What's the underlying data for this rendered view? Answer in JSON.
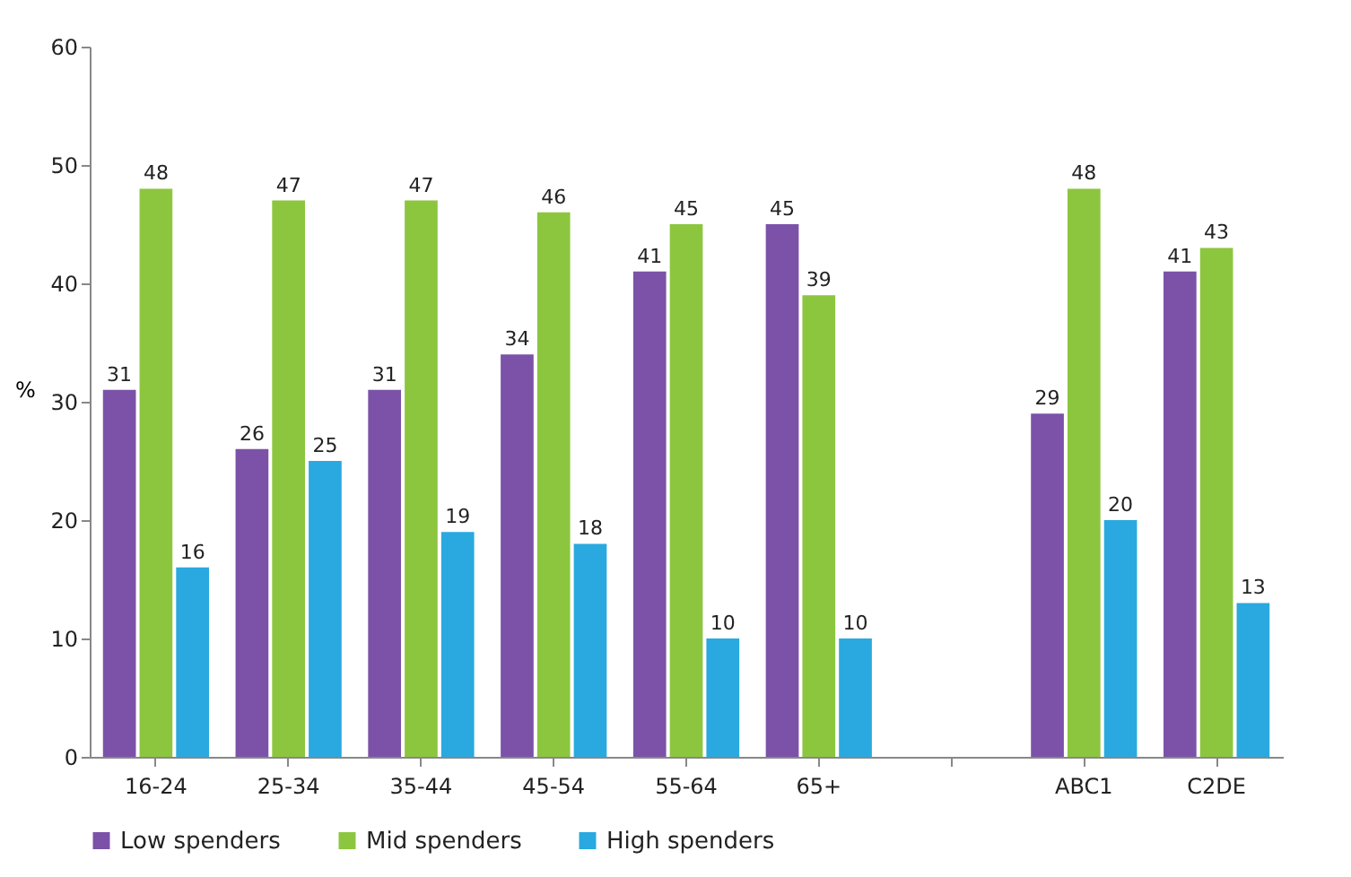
{
  "chart_data": {
    "type": "bar",
    "ylabel": "%",
    "categories": [
      "16-24",
      "25-34",
      "35-44",
      "45-54",
      "55-64",
      "65+",
      null,
      "ABC1",
      "C2DE"
    ],
    "series": [
      {
        "name": "Low spenders",
        "color": "#7b52a8",
        "values": [
          31,
          26,
          31,
          34,
          41,
          45,
          null,
          29,
          41
        ]
      },
      {
        "name": "Mid spenders",
        "color": "#8cc63f",
        "values": [
          48,
          47,
          47,
          46,
          45,
          39,
          null,
          48,
          43
        ]
      },
      {
        "name": "High spenders",
        "color": "#29a9e0",
        "values": [
          16,
          25,
          19,
          18,
          10,
          10,
          null,
          20,
          13
        ]
      }
    ],
    "ylim": [
      0,
      60
    ],
    "yticks": [
      0,
      10,
      20,
      30,
      40,
      50,
      60
    ],
    "grid": false,
    "legend": "bottom",
    "data_labels": true
  }
}
